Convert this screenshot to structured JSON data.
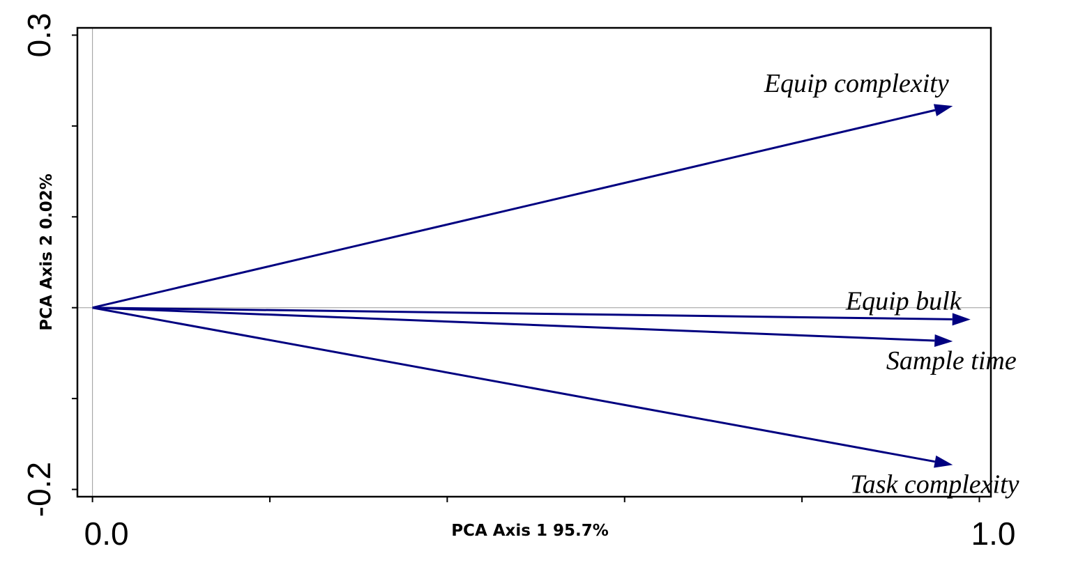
{
  "chart_data": {
    "type": "biplot",
    "xlabel": "PCA Axis 1 95.7%",
    "ylabel": "PCA Axis 2 0.02%",
    "xlim": [
      -0.017,
      1.013
    ],
    "ylim": [
      -0.208,
      0.308
    ],
    "x_tick_values": [
      0.0,
      0.2,
      0.4,
      0.6,
      0.8,
      1.0
    ],
    "y_tick_values": [
      -0.2,
      -0.1,
      0.0,
      0.1,
      0.2,
      0.3
    ],
    "x_tick_labels": [
      "0.0",
      "",
      "",
      "",
      "",
      "1.0"
    ],
    "y_tick_labels": [
      "-0.2",
      "",
      "",
      "",
      "",
      "0.3"
    ],
    "origin": [
      0.0,
      0.0
    ],
    "zero_lines": true,
    "arrow_color": "#000080",
    "vectors": [
      {
        "name": "Equip complexity",
        "x": 0.97,
        "y": 0.222
      },
      {
        "name": "Equip bulk",
        "x": 0.99,
        "y": -0.013
      },
      {
        "name": "Sample time",
        "x": 0.97,
        "y": -0.037
      },
      {
        "name": "Task complexity",
        "x": 0.97,
        "y": -0.173
      }
    ]
  }
}
